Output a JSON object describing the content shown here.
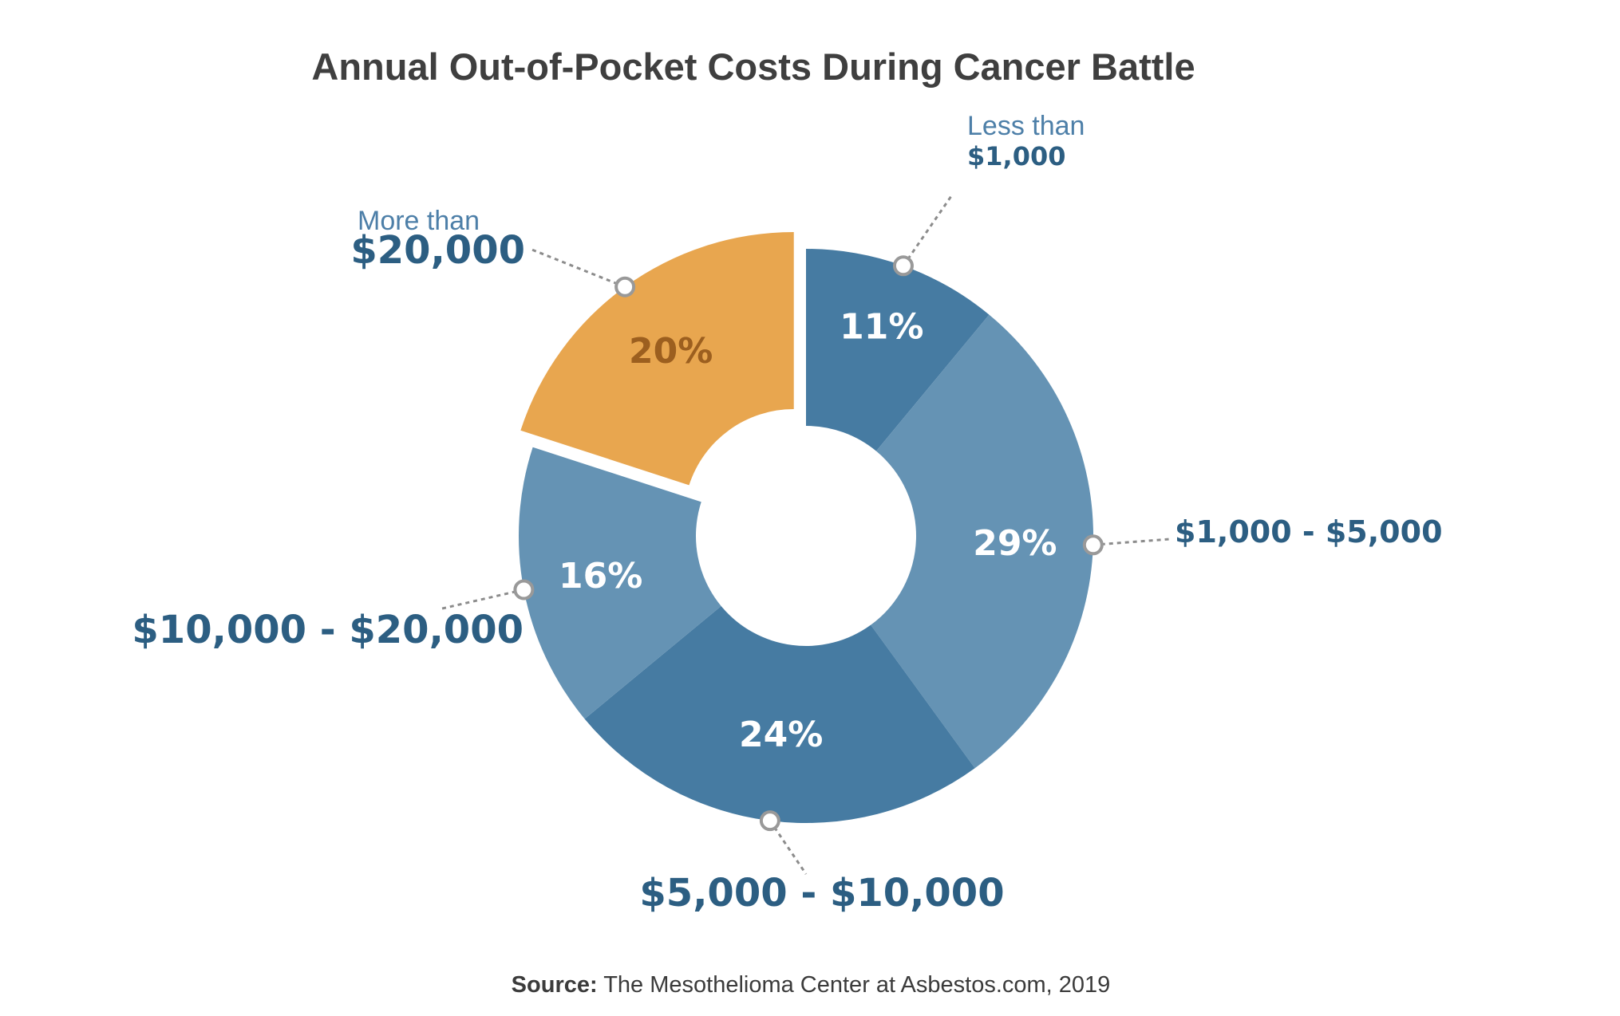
{
  "chart_data": {
    "type": "pie",
    "subtype": "donut",
    "title": "Annual Out-of-Pocket Costs During Cancer Battle",
    "source_label": "Source:",
    "source_text": " The Mesothelioma Center at Asbestos.com, 2019",
    "slices": [
      {
        "name": "less-than-1000",
        "prefix": "Less than",
        "label": "$1,000",
        "value": 11,
        "value_label": "11%",
        "color": "#467ba2",
        "text_color": "#ffffff",
        "exploded": false
      },
      {
        "name": "1000-5000",
        "prefix": "",
        "label": "$1,000 - $5,000",
        "value": 29,
        "value_label": "29%",
        "color": "#6593b4",
        "text_color": "#ffffff",
        "exploded": false
      },
      {
        "name": "5000-10000",
        "prefix": "",
        "label": "$5,000 - $10,000",
        "value": 24,
        "value_label": "24%",
        "color": "#467ba2",
        "text_color": "#ffffff",
        "exploded": false
      },
      {
        "name": "10000-20000",
        "prefix": "",
        "label": "$10,000 - $20,000",
        "value": 16,
        "value_label": "16%",
        "color": "#6593b4",
        "text_color": "#ffffff",
        "exploded": false
      },
      {
        "name": "more-than-20000",
        "prefix": "More than",
        "label": "$20,000",
        "value": 20,
        "value_label": "20%",
        "color": "#e8a64f",
        "text_color": "#9c5f1f",
        "exploded": true
      }
    ]
  }
}
